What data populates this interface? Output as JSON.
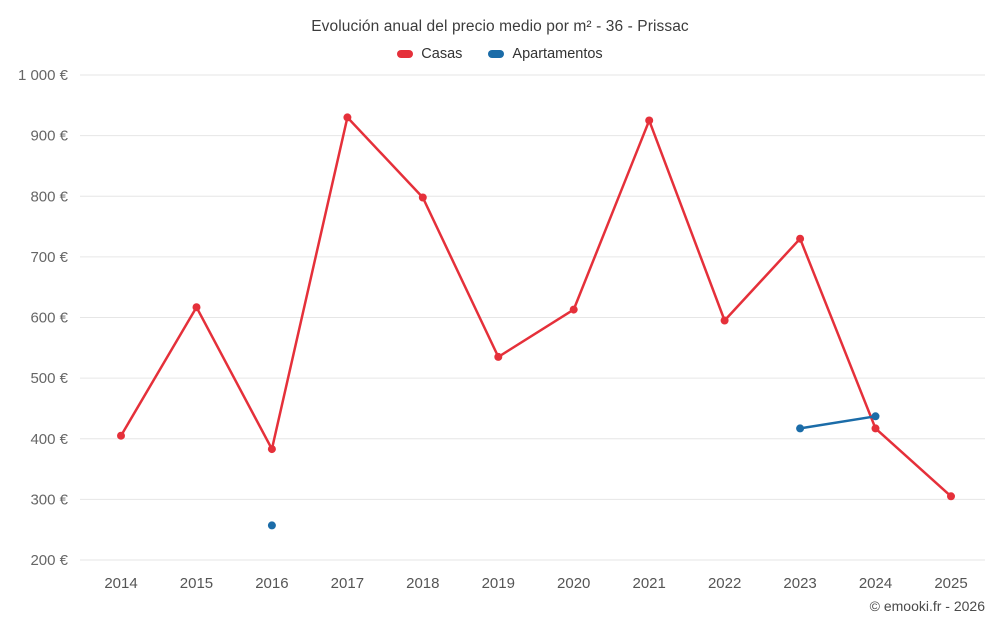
{
  "chart_data": {
    "type": "line",
    "title": "Evolución anual del precio medio por m² - 36 - Prissac",
    "categories": [
      "2014",
      "2015",
      "2016",
      "2017",
      "2018",
      "2019",
      "2020",
      "2021",
      "2022",
      "2023",
      "2024",
      "2025"
    ],
    "series": [
      {
        "name": "Casas",
        "color": "#e5303a",
        "values": [
          405,
          617,
          383,
          930,
          798,
          535,
          613,
          925,
          595,
          730,
          417,
          305
        ]
      },
      {
        "name": "Apartamentos",
        "color": "#1b6ca8",
        "values": [
          null,
          null,
          257,
          null,
          null,
          null,
          null,
          null,
          null,
          417,
          437,
          null
        ]
      }
    ],
    "ylim": [
      200,
      1000
    ],
    "ytick_step": 100,
    "ytick_labels": [
      "200 €",
      "300 €",
      "400 €",
      "500 €",
      "600 €",
      "700 €",
      "800 €",
      "900 €",
      "1 000 €"
    ],
    "grid": "horizontal",
    "legend_position": "top",
    "footer": "© emooki.fr - 2026"
  }
}
